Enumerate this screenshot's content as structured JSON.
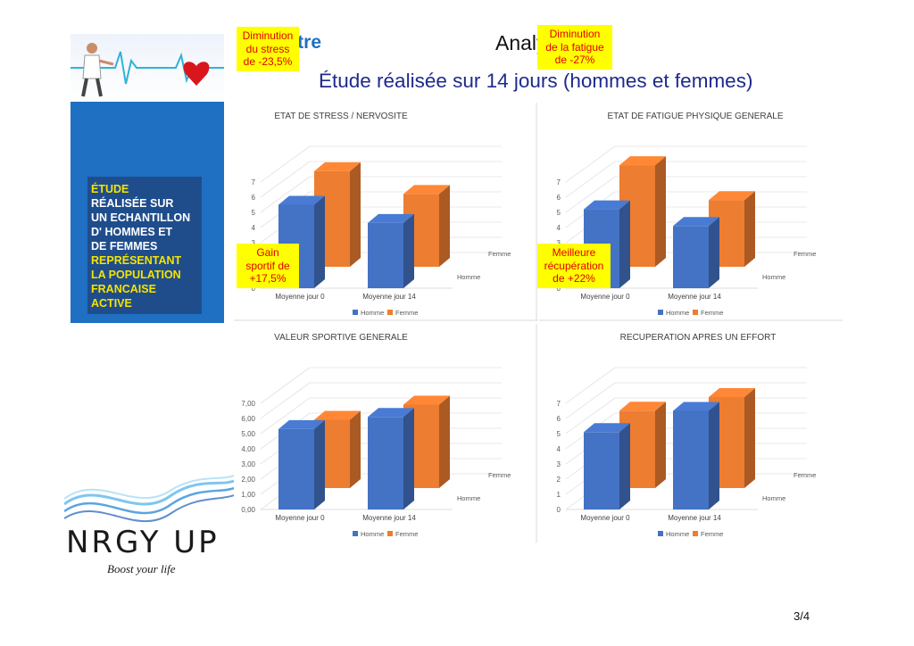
{
  "header": {
    "brand": "Bien-être",
    "section": "Analyses",
    "subtitle": "Étude réalisée sur 14 jours (hommes et femmes)"
  },
  "sidebar": {
    "lines": [
      {
        "text": "ÉTUDE",
        "color": "yellow"
      },
      {
        "text": "RÉALISÉE SUR",
        "color": "white"
      },
      {
        "text": "UN ECHANTILLON",
        "color": "white"
      },
      {
        "text": "D' HOMMES ET",
        "color": "white"
      },
      {
        "text": "DE FEMMES",
        "color": "white"
      },
      {
        "text": "REPRÉSENTANT",
        "color": "yellow"
      },
      {
        "text": "LA POPULATION",
        "color": "yellow"
      },
      {
        "text": "FRANCAISE",
        "color": "white"
      },
      {
        "text": "ACTIVE",
        "color": "white"
      }
    ]
  },
  "logo": {
    "name": "NRGY UP",
    "tagline": "Boost your life"
  },
  "page": {
    "number": "3/4"
  },
  "colors": {
    "homme": "#4472c4",
    "femme": "#ed7d31",
    "callout_bg": "#ffff00",
    "callout_text": "#e00000"
  },
  "chart_data": [
    {
      "type": "bar",
      "title": "ETAT DE STRESS / NERVOSITE",
      "categories": [
        "Moyenne jour 0",
        "Moyenne jour 14"
      ],
      "series": [
        {
          "name": "Homme",
          "values": [
            5.5,
            4.3
          ]
        },
        {
          "name": "Femme",
          "values": [
            6.3,
            4.8
          ]
        }
      ],
      "depth_labels": [
        "Femme",
        "Homme"
      ],
      "yticks": [
        "0",
        "1",
        "2",
        "3",
        "4",
        "5",
        "6",
        "7"
      ],
      "ylim": [
        0,
        7
      ],
      "legend": "bottom",
      "callout": [
        "Diminution",
        "du stress",
        "de -23,5%"
      ]
    },
    {
      "type": "bar",
      "title": "ETAT DE FATIGUE PHYSIQUE GENERALE",
      "categories": [
        "Moyenne jour 0",
        "Moyenne jour 14"
      ],
      "series": [
        {
          "name": "Homme",
          "values": [
            5.2,
            4.1
          ]
        },
        {
          "name": "Femme",
          "values": [
            6.7,
            4.4
          ]
        }
      ],
      "depth_labels": [
        "Femme",
        "Homme"
      ],
      "yticks": [
        "0",
        "1",
        "2",
        "3",
        "4",
        "5",
        "6",
        "7"
      ],
      "ylim": [
        0,
        7
      ],
      "legend": "bottom",
      "callout": [
        "Diminution",
        "de la fatigue",
        "de -27%"
      ]
    },
    {
      "type": "bar",
      "title": "VALEUR SPORTIVE GENERALE",
      "categories": [
        "Moyenne jour 0",
        "Moyenne jour 14"
      ],
      "series": [
        {
          "name": "Homme",
          "values": [
            5.3,
            6.1
          ]
        },
        {
          "name": "Femme",
          "values": [
            4.5,
            5.5
          ]
        }
      ],
      "depth_labels": [
        "Femme",
        "Homme"
      ],
      "yticks": [
        "0,00",
        "1,00",
        "2,00",
        "3,00",
        "4,00",
        "5,00",
        "6,00",
        "7,00"
      ],
      "ylim": [
        0,
        7
      ],
      "legend": "bottom",
      "callout": [
        "Gain",
        "sportif de",
        "+17,5%"
      ]
    },
    {
      "type": "bar",
      "title": "RECUPERATION APRES UN EFFORT",
      "categories": [
        "Moyenne jour 0",
        "Moyenne jour 14"
      ],
      "series": [
        {
          "name": "Homme",
          "values": [
            5.1,
            6.5
          ]
        },
        {
          "name": "Femme",
          "values": [
            5.1,
            6.0
          ]
        }
      ],
      "depth_labels": [
        "Femme",
        "Homme"
      ],
      "yticks": [
        "0",
        "1",
        "2",
        "3",
        "4",
        "5",
        "6",
        "7"
      ],
      "ylim": [
        0,
        7
      ],
      "legend": "bottom",
      "callout": [
        "Meilleure",
        "récupération",
        "de +22%"
      ]
    }
  ]
}
